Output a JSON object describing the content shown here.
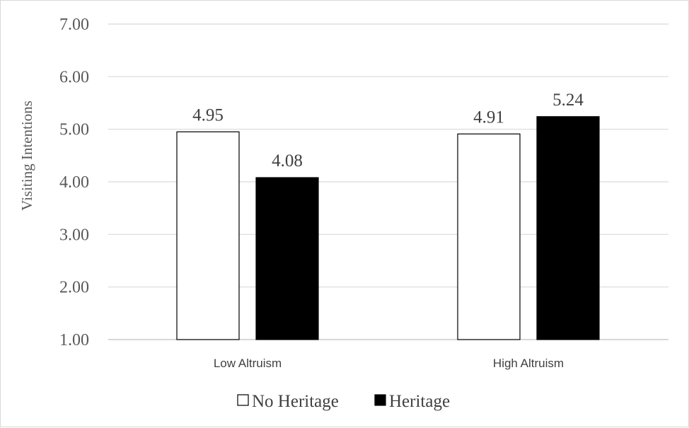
{
  "chart_data": {
    "type": "bar",
    "categories": [
      "Low Altruism",
      "High Altruism"
    ],
    "series": [
      {
        "name": "No Heritage",
        "values": [
          4.95,
          4.91
        ],
        "fill": "#ffffff",
        "stroke": "#000000"
      },
      {
        "name": "Heritage",
        "values": [
          4.08,
          5.24
        ],
        "fill": "#000000",
        "stroke": "#000000"
      }
    ],
    "data_labels": [
      [
        "4.95",
        "4.91"
      ],
      [
        "4.08",
        "5.24"
      ]
    ],
    "title": "",
    "xlabel": "",
    "ylabel": "Visiting Intentions",
    "ylim": [
      1,
      7
    ],
    "yticks": [
      "1.00",
      "2.00",
      "3.00",
      "4.00",
      "5.00",
      "6.00",
      "7.00"
    ],
    "grid": true,
    "legend_position": "bottom",
    "colors": {
      "gridline": "#d9d9d9",
      "axis": "#bfbfbf"
    }
  }
}
